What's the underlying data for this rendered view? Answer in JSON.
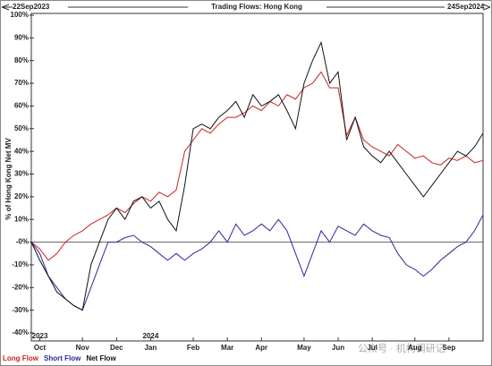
{
  "chart_data": {
    "type": "line",
    "title": "Trading Flows: Hong Kong",
    "start_label": "22Sep2023",
    "end_label": "24Sep2024",
    "y_label": "% of Hong Kong Net MV",
    "watermark": "公众号 · 机构调研记",
    "categories": [
      null,
      "Oct",
      null,
      null,
      null,
      null,
      "Nov",
      null,
      null,
      null,
      "Dec",
      null,
      null,
      null,
      "Jan",
      null,
      null,
      null,
      null,
      "Feb",
      null,
      null,
      null,
      "Mar",
      null,
      null,
      null,
      "Apr",
      null,
      null,
      null,
      null,
      "May",
      null,
      null,
      null,
      "Jun",
      null,
      null,
      null,
      "Jul",
      null,
      null,
      null,
      null,
      "Aug",
      null,
      null,
      null,
      "Sep",
      null,
      null,
      null,
      null
    ],
    "x_year_labels": [
      null,
      "2023",
      null,
      null,
      null,
      null,
      null,
      null,
      null,
      null,
      null,
      null,
      null,
      null,
      "2024",
      null,
      null,
      null,
      null,
      null,
      null,
      null,
      null,
      null,
      null,
      null,
      null,
      null,
      null,
      null,
      null,
      null,
      null,
      null,
      null,
      null,
      null,
      null,
      null,
      null,
      null,
      null,
      null,
      null,
      null,
      null,
      null,
      null,
      null,
      null,
      null,
      null,
      null,
      null
    ],
    "series": [
      {
        "name": "Long Flow",
        "color": "#cc2222",
        "values": [
          0,
          -3,
          -8,
          -5,
          0,
          3,
          5,
          8,
          10,
          12,
          15,
          13,
          17,
          20,
          18,
          22,
          20,
          23,
          40,
          45,
          50,
          48,
          52,
          55,
          55,
          57,
          60,
          58,
          62,
          60,
          65,
          63,
          68,
          70,
          75,
          68,
          68,
          47,
          55,
          45,
          42,
          40,
          38,
          43,
          40,
          37,
          38,
          35,
          34,
          37,
          36,
          38,
          35,
          36
        ]
      },
      {
        "name": "Short Flow",
        "color": "#2a2a9a",
        "values": [
          0,
          -5,
          -15,
          -20,
          -25,
          -28,
          -30,
          -20,
          -10,
          0,
          0,
          2,
          3,
          0,
          -2,
          -5,
          -8,
          -5,
          -8,
          -5,
          -3,
          0,
          5,
          0,
          8,
          3,
          5,
          8,
          5,
          10,
          5,
          -5,
          -15,
          -5,
          5,
          0,
          7,
          5,
          3,
          8,
          5,
          3,
          2,
          -5,
          -10,
          -12,
          -15,
          -12,
          -8,
          -5,
          -2,
          0,
          5,
          12
        ]
      },
      {
        "name": "Net Flow",
        "color": "#111111",
        "values": [
          0,
          -8,
          -15,
          -22,
          -25,
          -28,
          -30,
          -10,
          0,
          10,
          15,
          10,
          18,
          20,
          15,
          18,
          10,
          5,
          25,
          50,
          52,
          50,
          55,
          58,
          62,
          55,
          65,
          60,
          62,
          65,
          58,
          50,
          70,
          80,
          88,
          70,
          75,
          45,
          55,
          42,
          38,
          35,
          40,
          35,
          30,
          25,
          20,
          25,
          30,
          35,
          40,
          38,
          42,
          48
        ]
      }
    ],
    "ylim": [
      -40,
      100
    ],
    "yticks": [
      {
        "value": -40,
        "label": "-40%"
      },
      {
        "value": -30,
        "label": "-30%"
      },
      {
        "value": -20,
        "label": "-20%"
      },
      {
        "value": -10,
        "label": "-10%"
      },
      {
        "value": 0,
        "label": "-0%"
      },
      {
        "value": 10,
        "label": "10%"
      },
      {
        "value": 20,
        "label": "20%"
      },
      {
        "value": 30,
        "label": "30%"
      },
      {
        "value": 40,
        "label": "40%"
      },
      {
        "value": 50,
        "label": "50%"
      },
      {
        "value": 60,
        "label": "60%"
      },
      {
        "value": 70,
        "label": "70%"
      },
      {
        "value": 80,
        "label": "80%"
      },
      {
        "value": 90,
        "label": "90%"
      },
      {
        "value": 100,
        "label": "100%"
      }
    ],
    "zero_line": true,
    "legend": "bottom-left"
  }
}
